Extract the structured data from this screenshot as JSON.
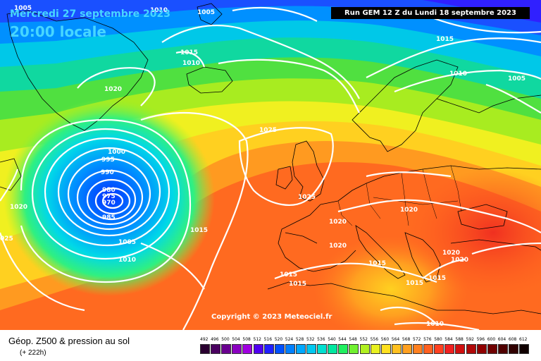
{
  "header": {
    "valid_date": "Mercredi 27 septembre 2023",
    "valid_time": "20:00 locale",
    "run_info": "Run GEM 12 Z du Lundi 18 septembre 2023"
  },
  "copyright": "Copyright © 2023 Meteociel.fr",
  "footer": {
    "title": "Géop. Z500 & pression au sol",
    "subtitle": "(+ 222h)"
  },
  "isobar_labels": [
    {
      "text": "1005"
    },
    {
      "text": "1010"
    },
    {
      "text": "1005"
    },
    {
      "text": "1015"
    },
    {
      "text": "1010"
    },
    {
      "text": "1020"
    },
    {
      "text": "1015"
    },
    {
      "text": "1010"
    },
    {
      "text": "1005"
    },
    {
      "text": "1025"
    },
    {
      "text": "1000"
    },
    {
      "text": "995"
    },
    {
      "text": "990"
    },
    {
      "text": "980"
    },
    {
      "text": "975"
    },
    {
      "text": "970"
    },
    {
      "text": "985"
    },
    {
      "text": "1020"
    },
    {
      "text": "025"
    },
    {
      "text": "1015"
    },
    {
      "text": "1005"
    },
    {
      "text": "1010"
    },
    {
      "text": "1025"
    },
    {
      "text": "1020"
    },
    {
      "text": "1020"
    },
    {
      "text": "1020"
    },
    {
      "text": "1015"
    },
    {
      "text": "1015"
    },
    {
      "text": "1015"
    },
    {
      "text": "1015"
    },
    {
      "text": "1015"
    },
    {
      "text": "1020"
    },
    {
      "text": "1020"
    },
    {
      "text": "1010"
    }
  ],
  "scale": {
    "labels": [
      "492",
      "496",
      "500",
      "504",
      "508",
      "512",
      "516",
      "520",
      "524",
      "528",
      "532",
      "536",
      "540",
      "544",
      "548",
      "552",
      "556",
      "560",
      "564",
      "568",
      "572",
      "576",
      "580",
      "584",
      "588",
      "592",
      "596",
      "600",
      "604",
      "608",
      "612"
    ],
    "colors": [
      "#2a0030",
      "#4a0060",
      "#6a0090",
      "#8a00c0",
      "#a000e0",
      "#5000f0",
      "#2020ff",
      "#0050ff",
      "#0080ff",
      "#00a8ff",
      "#00c8f0",
      "#00e0d0",
      "#00e8a0",
      "#20f060",
      "#70f030",
      "#b0f020",
      "#e8f020",
      "#ffe020",
      "#ffc020",
      "#ffa020",
      "#ff8020",
      "#ff6020",
      "#ff4020",
      "#f02020",
      "#d01010",
      "#b00808",
      "#900000",
      "#700000",
      "#500000",
      "#300000",
      "#100000"
    ]
  }
}
